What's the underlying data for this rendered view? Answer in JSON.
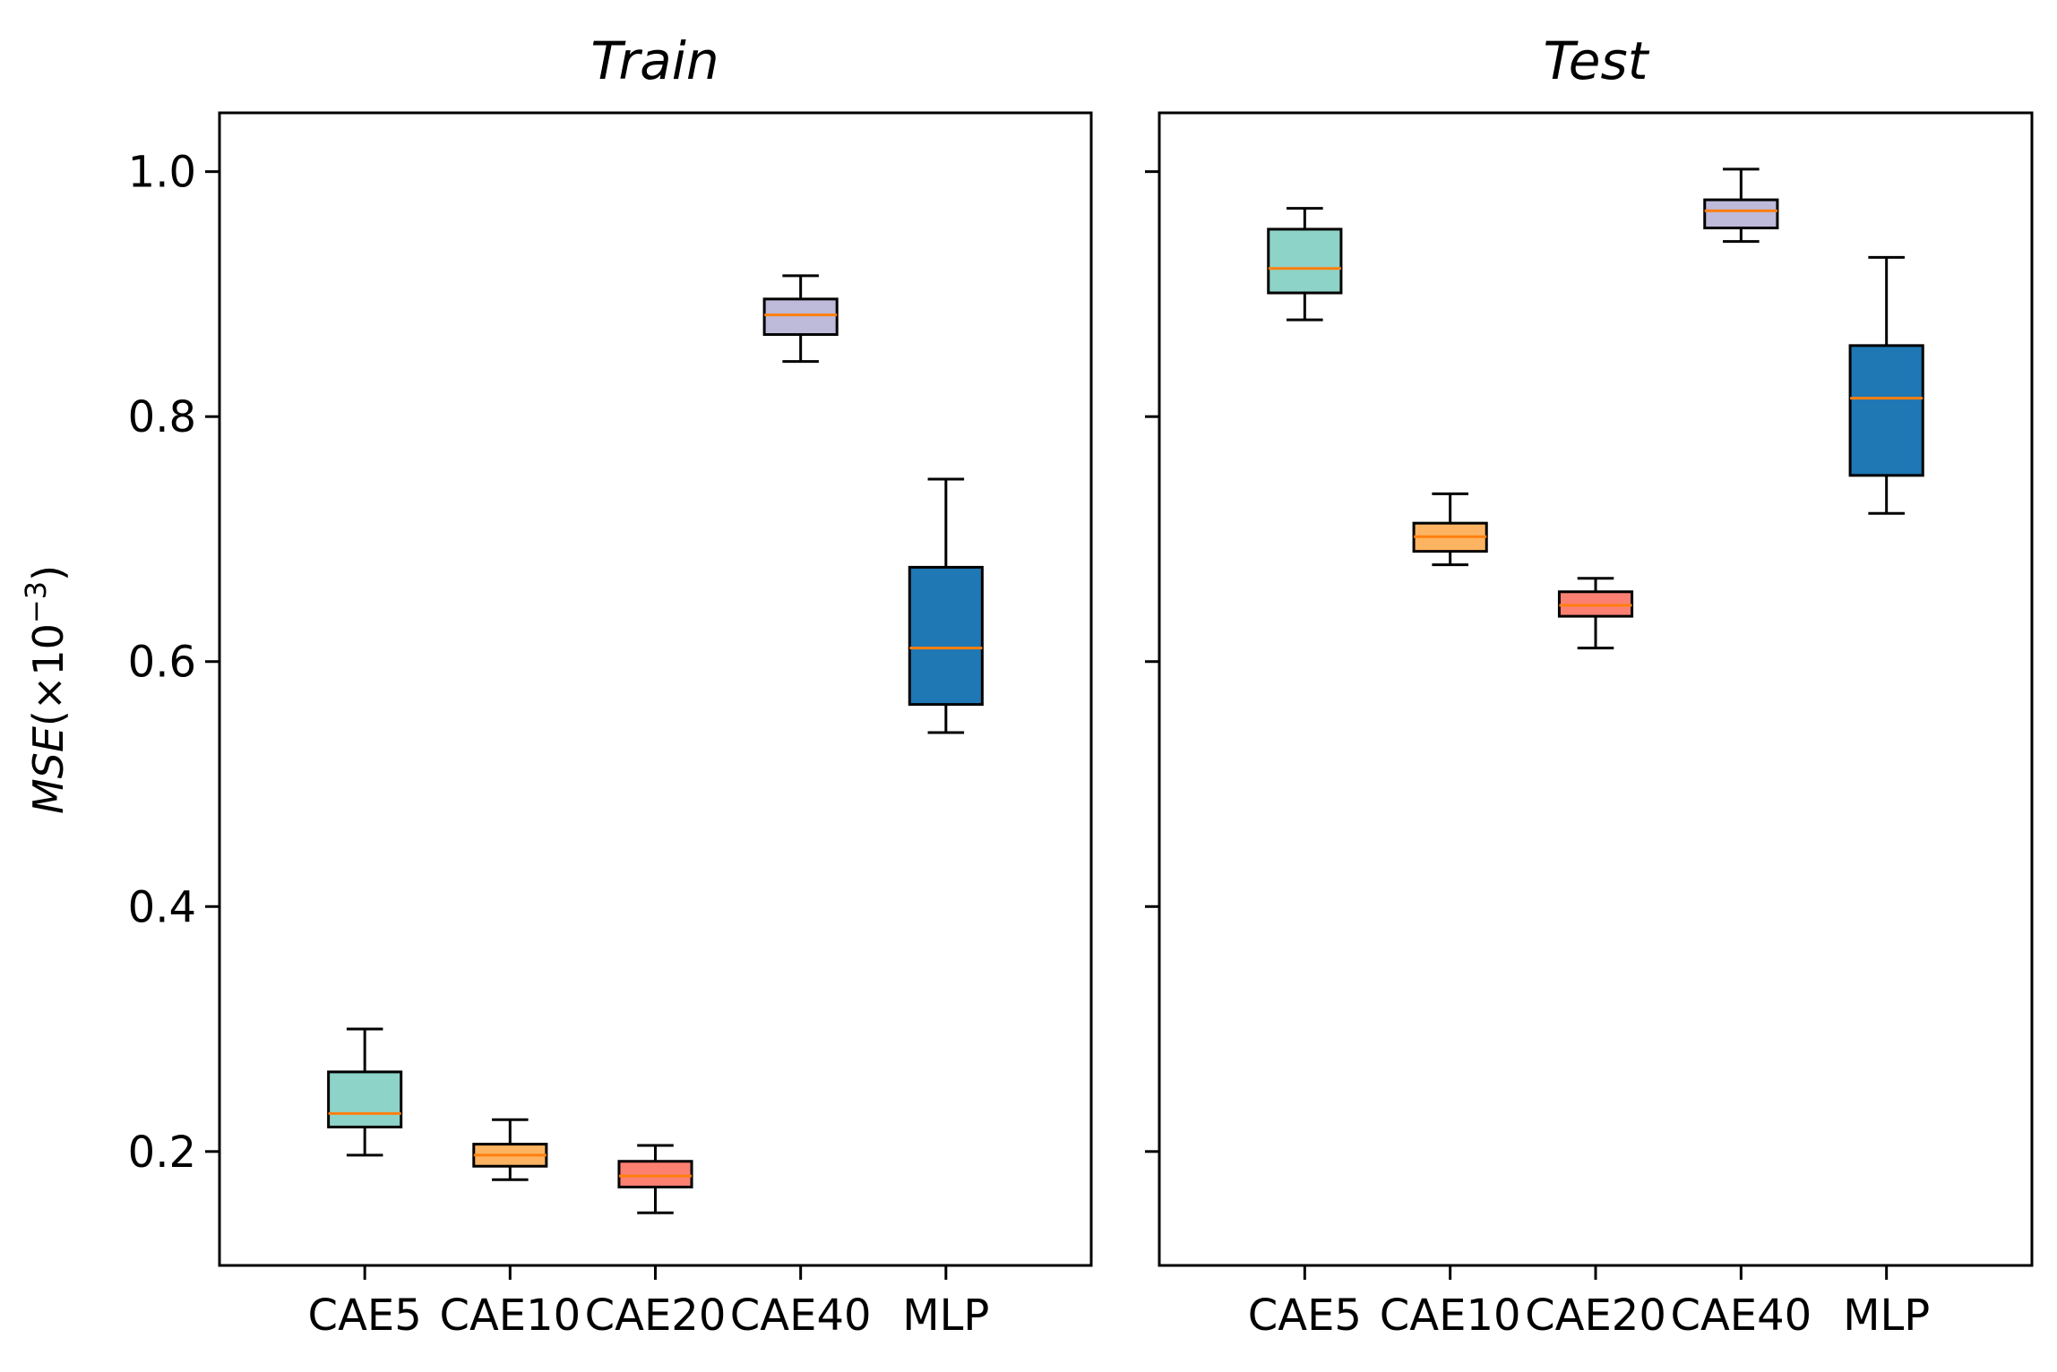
{
  "chart_data": {
    "type": "boxplot",
    "ylabel": {
      "main": "MSE",
      "units": "(×10",
      "exponent": "−3",
      "close": ")"
    },
    "ylim": [
      0.107,
      1.048
    ],
    "yticks": [
      0.2,
      0.4,
      0.6,
      0.8,
      1.0
    ],
    "ytick_labels": [
      "0.2",
      "0.4",
      "0.6",
      "0.8",
      "1.0"
    ],
    "categories": [
      "CAE5",
      "CAE10",
      "CAE20",
      "CAE40",
      "MLP"
    ],
    "box_colors": [
      "#8dd3c7",
      "#fdb462",
      "#fb8072",
      "#bebada",
      "#1f77b4"
    ],
    "median_color": "#ff7f0e",
    "panels": [
      {
        "title": "Train",
        "boxes": [
          {
            "whislo": 0.197,
            "q1": 0.22,
            "med": 0.231,
            "q3": 0.265,
            "whishi": 0.3
          },
          {
            "whislo": 0.177,
            "q1": 0.188,
            "med": 0.197,
            "q3": 0.206,
            "whishi": 0.226
          },
          {
            "whislo": 0.15,
            "q1": 0.171,
            "med": 0.18,
            "q3": 0.192,
            "whishi": 0.205
          },
          {
            "whislo": 0.845,
            "q1": 0.867,
            "med": 0.883,
            "q3": 0.896,
            "whishi": 0.915
          },
          {
            "whislo": 0.542,
            "q1": 0.565,
            "med": 0.611,
            "q3": 0.677,
            "whishi": 0.749
          }
        ]
      },
      {
        "title": "Test",
        "boxes": [
          {
            "whislo": 0.879,
            "q1": 0.901,
            "med": 0.921,
            "q3": 0.953,
            "whishi": 0.97
          },
          {
            "whislo": 0.679,
            "q1": 0.69,
            "med": 0.702,
            "q3": 0.713,
            "whishi": 0.737
          },
          {
            "whislo": 0.611,
            "q1": 0.637,
            "med": 0.646,
            "q3": 0.657,
            "whishi": 0.668
          },
          {
            "whislo": 0.943,
            "q1": 0.954,
            "med": 0.968,
            "q3": 0.977,
            "whishi": 1.002
          },
          {
            "whislo": 0.721,
            "q1": 0.752,
            "med": 0.815,
            "q3": 0.858,
            "whishi": 0.93
          }
        ]
      }
    ]
  }
}
